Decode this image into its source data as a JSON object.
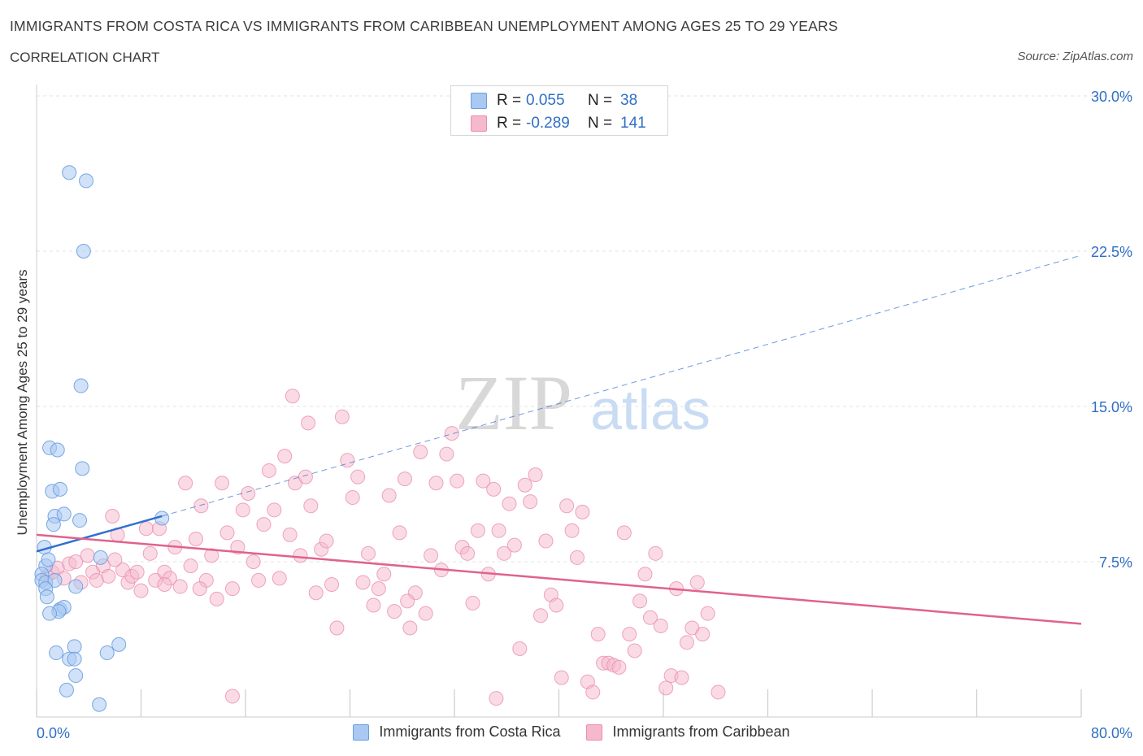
{
  "header": {
    "title": "IMMIGRANTS FROM COSTA RICA VS IMMIGRANTS FROM CARIBBEAN UNEMPLOYMENT AMONG AGES 25 TO 29 YEARS",
    "subtitle": "CORRELATION CHART",
    "source": "Source: ZipAtlas.com"
  },
  "watermark": {
    "zip": "ZIP",
    "atlas": "atlas"
  },
  "legend": {
    "rows": [
      {
        "r_label": "R =",
        "r_value": "0.055",
        "n_label": "N =",
        "n_value": "38"
      },
      {
        "r_label": "R =",
        "r_value": "-0.289",
        "n_label": "N =",
        "n_value": "141"
      }
    ]
  },
  "bottom_legend": {
    "costa_rica": "Immigrants from Costa Rica",
    "caribbean": "Immigrants from Caribbean"
  },
  "colors": {
    "costa_rica_fill": "#a9c9f2",
    "costa_rica_stroke": "#6a9ee0",
    "costa_rica_line": "#3070d0",
    "caribbean_fill": "#f5b8cc",
    "caribbean_stroke": "#ea8fad",
    "caribbean_line": "#e0628e",
    "tick_label": "#2f6fc4"
  },
  "chart_data": {
    "type": "scatter",
    "title": "IMMIGRANTS FROM COSTA RICA VS IMMIGRANTS FROM CARIBBEAN UNEMPLOYMENT AMONG AGES 25 TO 29 YEARS",
    "xlabel": "",
    "ylabel": "Unemployment Among Ages 25 to 29 years",
    "xlim": [
      0,
      80
    ],
    "ylim": [
      0,
      30
    ],
    "x_tick_labels": [
      "0.0%",
      "80.0%"
    ],
    "y_ticks": [
      7.5,
      15.0,
      22.5,
      30.0
    ],
    "y_tick_labels": [
      "7.5%",
      "15.0%",
      "22.5%",
      "30.0%"
    ],
    "grid": true,
    "legend_position": "top-center",
    "series": [
      {
        "name": "Immigrants from Costa Rica",
        "R": 0.055,
        "N": 38,
        "trend": {
          "x": [
            0,
            9.6
          ],
          "y": [
            8.0,
            9.7
          ]
        },
        "trend_extension": {
          "x": [
            9.6,
            80
          ],
          "y": [
            9.7,
            22.3
          ]
        },
        "points": [
          [
            2.5,
            26.3
          ],
          [
            3.8,
            25.9
          ],
          [
            3.6,
            22.5
          ],
          [
            3.4,
            16.0
          ],
          [
            1.0,
            13.0
          ],
          [
            1.6,
            12.9
          ],
          [
            3.5,
            12.0
          ],
          [
            1.2,
            10.9
          ],
          [
            1.8,
            11.0
          ],
          [
            1.4,
            9.7
          ],
          [
            2.1,
            9.8
          ],
          [
            3.3,
            9.5
          ],
          [
            9.6,
            9.6
          ],
          [
            1.3,
            9.3
          ],
          [
            0.6,
            8.2
          ],
          [
            0.7,
            7.3
          ],
          [
            0.9,
            7.6
          ],
          [
            4.9,
            7.7
          ],
          [
            0.4,
            6.9
          ],
          [
            0.4,
            6.6
          ],
          [
            0.7,
            6.5
          ],
          [
            1.4,
            6.6
          ],
          [
            3.0,
            6.3
          ],
          [
            0.7,
            6.2
          ],
          [
            0.8,
            5.8
          ],
          [
            1.8,
            5.2
          ],
          [
            2.1,
            5.3
          ],
          [
            1.7,
            5.1
          ],
          [
            1.0,
            5.0
          ],
          [
            6.3,
            3.5
          ],
          [
            2.9,
            3.4
          ],
          [
            1.5,
            3.1
          ],
          [
            5.4,
            3.1
          ],
          [
            2.5,
            2.8
          ],
          [
            2.9,
            2.8
          ],
          [
            3.0,
            2.0
          ],
          [
            2.3,
            1.3
          ],
          [
            4.8,
            0.6
          ]
        ]
      },
      {
        "name": "Immigrants from Caribbean",
        "R": -0.289,
        "N": 141,
        "trend": {
          "x": [
            0,
            80
          ],
          "y": [
            8.8,
            4.5
          ]
        },
        "points": [
          [
            0.8,
            6.8
          ],
          [
            1.2,
            7.0
          ],
          [
            1.6,
            7.2
          ],
          [
            2.1,
            6.7
          ],
          [
            2.5,
            7.4
          ],
          [
            3.0,
            7.5
          ],
          [
            3.4,
            6.5
          ],
          [
            3.9,
            7.8
          ],
          [
            4.3,
            7.0
          ],
          [
            4.6,
            6.6
          ],
          [
            5.1,
            7.3
          ],
          [
            5.5,
            6.8
          ],
          [
            5.8,
            9.7
          ],
          [
            6.2,
            8.8
          ],
          [
            6.6,
            7.1
          ],
          [
            7.0,
            6.5
          ],
          [
            7.3,
            6.8
          ],
          [
            7.7,
            7.0
          ],
          [
            8.0,
            6.1
          ],
          [
            8.4,
            9.1
          ],
          [
            8.7,
            7.9
          ],
          [
            9.1,
            6.6
          ],
          [
            9.4,
            9.1
          ],
          [
            9.8,
            7.0
          ],
          [
            10.2,
            6.7
          ],
          [
            10.6,
            8.2
          ],
          [
            11.0,
            6.3
          ],
          [
            11.4,
            11.3
          ],
          [
            11.8,
            7.3
          ],
          [
            12.2,
            8.6
          ],
          [
            12.6,
            10.2
          ],
          [
            13.0,
            6.6
          ],
          [
            13.4,
            7.8
          ],
          [
            13.8,
            5.7
          ],
          [
            14.2,
            11.3
          ],
          [
            14.6,
            8.9
          ],
          [
            15.0,
            6.2
          ],
          [
            15.4,
            8.2
          ],
          [
            15.8,
            10.0
          ],
          [
            16.2,
            10.8
          ],
          [
            16.6,
            7.5
          ],
          [
            17.0,
            6.6
          ],
          [
            17.4,
            9.3
          ],
          [
            17.8,
            11.9
          ],
          [
            18.2,
            10.0
          ],
          [
            18.6,
            6.7
          ],
          [
            19.0,
            12.6
          ],
          [
            19.4,
            8.8
          ],
          [
            19.8,
            11.3
          ],
          [
            20.2,
            7.8
          ],
          [
            20.6,
            11.6
          ],
          [
            21.0,
            10.2
          ],
          [
            21.4,
            6.0
          ],
          [
            21.8,
            8.1
          ],
          [
            22.2,
            8.5
          ],
          [
            22.6,
            6.4
          ],
          [
            23.0,
            4.3
          ],
          [
            23.4,
            14.5
          ],
          [
            23.8,
            12.4
          ],
          [
            24.2,
            10.6
          ],
          [
            24.6,
            11.6
          ],
          [
            25.0,
            6.5
          ],
          [
            25.4,
            7.9
          ],
          [
            25.8,
            5.4
          ],
          [
            26.2,
            6.2
          ],
          [
            26.6,
            6.9
          ],
          [
            27.0,
            10.7
          ],
          [
            27.4,
            5.1
          ],
          [
            27.8,
            8.9
          ],
          [
            28.2,
            11.5
          ],
          [
            28.6,
            4.3
          ],
          [
            29.0,
            6.0
          ],
          [
            29.4,
            12.8
          ],
          [
            29.8,
            5.0
          ],
          [
            30.2,
            7.8
          ],
          [
            30.6,
            11.3
          ],
          [
            31.0,
            7.1
          ],
          [
            31.4,
            12.7
          ],
          [
            31.8,
            13.7
          ],
          [
            32.2,
            11.4
          ],
          [
            32.6,
            8.2
          ],
          [
            33.0,
            7.9
          ],
          [
            33.4,
            5.5
          ],
          [
            33.8,
            9.0
          ],
          [
            34.2,
            11.4
          ],
          [
            34.6,
            6.9
          ],
          [
            35.0,
            11.0
          ],
          [
            35.4,
            9.0
          ],
          [
            35.8,
            7.9
          ],
          [
            36.2,
            10.3
          ],
          [
            36.6,
            8.3
          ],
          [
            37.0,
            3.3
          ],
          [
            37.4,
            11.2
          ],
          [
            37.8,
            10.4
          ],
          [
            38.2,
            11.7
          ],
          [
            38.6,
            4.9
          ],
          [
            39.0,
            8.5
          ],
          [
            39.4,
            5.9
          ],
          [
            39.8,
            5.4
          ],
          [
            40.2,
            1.9
          ],
          [
            40.6,
            10.2
          ],
          [
            41.0,
            9.0
          ],
          [
            41.4,
            7.7
          ],
          [
            41.8,
            9.9
          ],
          [
            42.2,
            1.7
          ],
          [
            42.6,
            1.2
          ],
          [
            43.0,
            4.0
          ],
          [
            43.4,
            2.6
          ],
          [
            43.8,
            2.6
          ],
          [
            44.2,
            2.5
          ],
          [
            44.6,
            2.4
          ],
          [
            45.0,
            8.9
          ],
          [
            45.4,
            4.0
          ],
          [
            45.8,
            3.2
          ],
          [
            46.2,
            5.6
          ],
          [
            46.6,
            6.9
          ],
          [
            47.0,
            4.8
          ],
          [
            47.4,
            7.9
          ],
          [
            47.8,
            4.4
          ],
          [
            48.2,
            1.4
          ],
          [
            48.6,
            2.0
          ],
          [
            49.0,
            6.2
          ],
          [
            49.4,
            1.9
          ],
          [
            49.8,
            3.6
          ],
          [
            50.2,
            4.3
          ],
          [
            50.6,
            6.5
          ],
          [
            51.0,
            4.0
          ],
          [
            51.4,
            5.0
          ],
          [
            15.0,
            1.0
          ],
          [
            19.6,
            15.5
          ],
          [
            20.8,
            14.2
          ],
          [
            35.2,
            0.9
          ],
          [
            52.2,
            1.2
          ],
          [
            6.0,
            7.6
          ],
          [
            9.8,
            6.4
          ],
          [
            12.5,
            6.2
          ],
          [
            28.4,
            5.6
          ]
        ]
      }
    ]
  }
}
